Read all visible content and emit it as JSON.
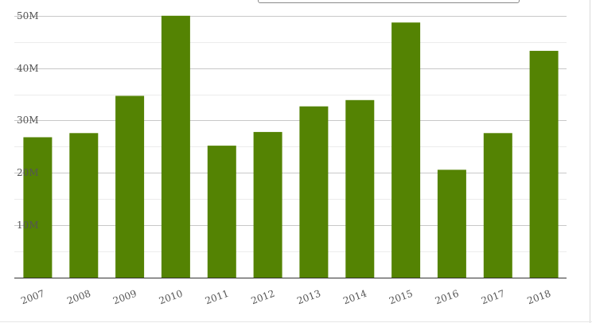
{
  "chart_data": {
    "type": "bar",
    "categories": [
      "2007",
      "2008",
      "2009",
      "2010",
      "2011",
      "2012",
      "2013",
      "2014",
      "2015",
      "2016",
      "2017",
      "2018"
    ],
    "values": [
      26.8,
      27.6,
      34.7,
      50.0,
      25.2,
      27.8,
      32.7,
      33.9,
      48.7,
      20.6,
      27.6,
      43.3
    ],
    "ylim": [
      0,
      53
    ],
    "yticks": [
      10,
      20,
      30,
      40,
      50
    ],
    "ytick_labels": [
      "10M",
      "20M",
      "30M",
      "40M",
      "50M"
    ],
    "bar_color": "#548303",
    "grid": true,
    "title": "",
    "xlabel": "",
    "ylabel": ""
  }
}
